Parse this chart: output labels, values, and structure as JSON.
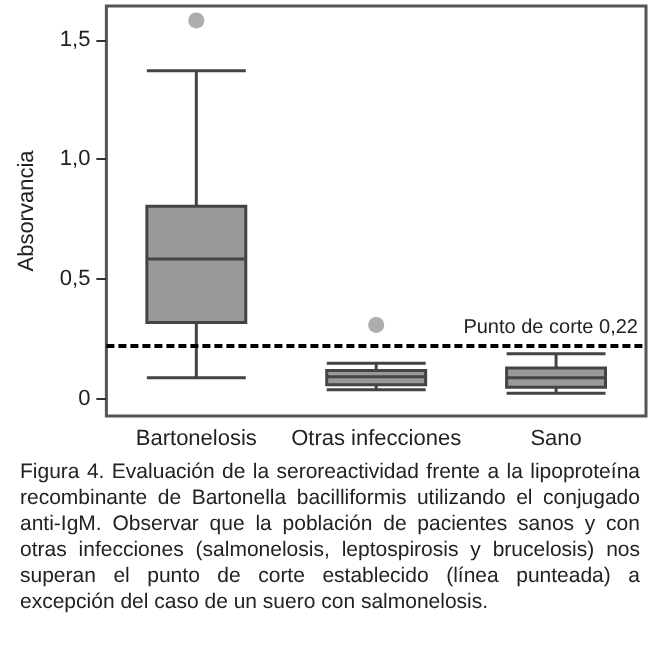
{
  "chart_data": {
    "type": "box",
    "ylabel": "Absorvancia",
    "categories": [
      "Bartonelosis",
      "Otras infecciones",
      "Sano"
    ],
    "color": "#999999",
    "boxes": [
      {
        "low": 0.09,
        "q1": 0.32,
        "median": 0.585,
        "q3": 0.805,
        "high": 1.37,
        "outliers": [
          1.58
        ]
      },
      {
        "low": 0.04,
        "q1": 0.06,
        "median": 0.094,
        "q3": 0.12,
        "high": 0.15,
        "outliers": [
          0.31
        ]
      },
      {
        "low": 0.025,
        "q1": 0.05,
        "median": 0.09,
        "q3": 0.13,
        "high": 0.19
      }
    ],
    "ylim": [
      -0.07,
      1.64
    ],
    "yticks": [
      0,
      {
        "value": 0.5,
        "label": "0,5"
      },
      {
        "value": 1,
        "label": "1,0"
      },
      {
        "value": 1.5,
        "label": "1,5"
      }
    ],
    "ref_lines": [
      {
        "axis": "y",
        "value": 0.22,
        "label": "Punto de corte 0,22",
        "line_style": "dashed"
      }
    ],
    "grid": false,
    "annotations": [
      "Figura 4. Evaluación de la seroreactividad frente a la lipoproteína recombinante de Bartonella bacilliformis utilizando el conjugado anti-IgM. Observar que la población de pacientes sanos y con otras infecciones (salmonelosis, leptospirosis y brucelosis) nos superan el punto de corte establecido (línea punteada) a excepción del caso de un suero con salmonelosis."
    ]
  }
}
